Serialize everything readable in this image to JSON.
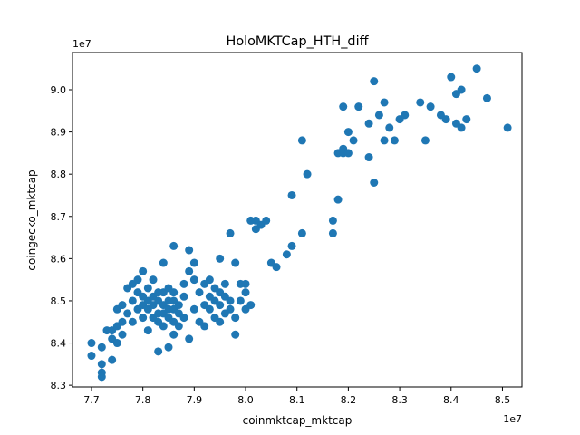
{
  "chart_data": {
    "type": "scatter",
    "title": "HoloMKTCap_HTH_diff",
    "xlabel": "coinmktcap_mktcap",
    "ylabel": "coingecko_mktcap",
    "x_offset_label": "1e7",
    "y_offset_label": "1e7",
    "xlim": [
      7.663,
      8.538
    ],
    "ylim": [
      8.296,
      9.088
    ],
    "x_ticks": [
      7.7,
      7.8,
      7.9,
      8.0,
      8.1,
      8.2,
      8.3,
      8.4,
      8.5
    ],
    "y_ticks": [
      8.3,
      8.4,
      8.5,
      8.6,
      8.7,
      8.8,
      8.9,
      9.0
    ],
    "grid": false,
    "point_color": "#1f77b4",
    "series": [
      {
        "points": [
          [
            7.7,
            8.4
          ],
          [
            7.7,
            8.37
          ],
          [
            7.72,
            8.39
          ],
          [
            7.72,
            8.35
          ],
          [
            7.72,
            8.33
          ],
          [
            7.72,
            8.32
          ],
          [
            7.73,
            8.43
          ],
          [
            7.74,
            8.41
          ],
          [
            7.74,
            8.36
          ],
          [
            7.74,
            8.43
          ],
          [
            7.75,
            8.4
          ],
          [
            7.75,
            8.48
          ],
          [
            7.75,
            8.44
          ],
          [
            7.76,
            8.42
          ],
          [
            7.76,
            8.45
          ],
          [
            7.76,
            8.49
          ],
          [
            7.77,
            8.53
          ],
          [
            7.77,
            8.47
          ],
          [
            7.78,
            8.45
          ],
          [
            7.78,
            8.5
          ],
          [
            7.78,
            8.54
          ],
          [
            7.79,
            8.48
          ],
          [
            7.79,
            8.52
          ],
          [
            7.79,
            8.55
          ],
          [
            7.8,
            8.46
          ],
          [
            7.8,
            8.49
          ],
          [
            7.8,
            8.51
          ],
          [
            7.8,
            8.57
          ],
          [
            7.81,
            8.43
          ],
          [
            7.81,
            8.48
          ],
          [
            7.81,
            8.5
          ],
          [
            7.81,
            8.53
          ],
          [
            7.82,
            8.46
          ],
          [
            7.82,
            8.49
          ],
          [
            7.82,
            8.51
          ],
          [
            7.82,
            8.55
          ],
          [
            7.83,
            8.45
          ],
          [
            7.83,
            8.47
          ],
          [
            7.83,
            8.5
          ],
          [
            7.83,
            8.52
          ],
          [
            7.83,
            8.38
          ],
          [
            7.84,
            8.44
          ],
          [
            7.84,
            8.47
          ],
          [
            7.84,
            8.49
          ],
          [
            7.84,
            8.52
          ],
          [
            7.84,
            8.59
          ],
          [
            7.85,
            8.39
          ],
          [
            7.85,
            8.46
          ],
          [
            7.85,
            8.48
          ],
          [
            7.85,
            8.5
          ],
          [
            7.85,
            8.53
          ],
          [
            7.86,
            8.42
          ],
          [
            7.86,
            8.45
          ],
          [
            7.86,
            8.48
          ],
          [
            7.86,
            8.5
          ],
          [
            7.86,
            8.52
          ],
          [
            7.86,
            8.63
          ],
          [
            7.87,
            8.44
          ],
          [
            7.87,
            8.47
          ],
          [
            7.87,
            8.49
          ],
          [
            7.88,
            8.46
          ],
          [
            7.88,
            8.51
          ],
          [
            7.88,
            8.54
          ],
          [
            7.89,
            8.41
          ],
          [
            7.89,
            8.57
          ],
          [
            7.89,
            8.62
          ],
          [
            7.9,
            8.48
          ],
          [
            7.9,
            8.55
          ],
          [
            7.9,
            8.59
          ],
          [
            7.91,
            8.52
          ],
          [
            7.91,
            8.45
          ],
          [
            7.92,
            8.44
          ],
          [
            7.92,
            8.49
          ],
          [
            7.92,
            8.54
          ],
          [
            7.93,
            8.48
          ],
          [
            7.93,
            8.51
          ],
          [
            7.93,
            8.55
          ],
          [
            7.94,
            8.46
          ],
          [
            7.94,
            8.5
          ],
          [
            7.94,
            8.53
          ],
          [
            7.95,
            8.45
          ],
          [
            7.95,
            8.49
          ],
          [
            7.95,
            8.52
          ],
          [
            7.95,
            8.6
          ],
          [
            7.96,
            8.47
          ],
          [
            7.96,
            8.51
          ],
          [
            7.96,
            8.54
          ],
          [
            7.97,
            8.48
          ],
          [
            7.97,
            8.5
          ],
          [
            7.97,
            8.66
          ],
          [
            7.98,
            8.46
          ],
          [
            7.98,
            8.42
          ],
          [
            7.98,
            8.59
          ],
          [
            7.99,
            8.5
          ],
          [
            7.99,
            8.54
          ],
          [
            8.0,
            8.48
          ],
          [
            8.0,
            8.52
          ],
          [
            8.0,
            8.54
          ],
          [
            8.01,
            8.49
          ],
          [
            8.01,
            8.69
          ],
          [
            8.02,
            8.67
          ],
          [
            8.02,
            8.69
          ],
          [
            8.03,
            8.68
          ],
          [
            8.04,
            8.69
          ],
          [
            8.05,
            8.59
          ],
          [
            8.06,
            8.58
          ],
          [
            8.08,
            8.61
          ],
          [
            8.09,
            8.63
          ],
          [
            8.09,
            8.75
          ],
          [
            8.11,
            8.66
          ],
          [
            8.11,
            8.88
          ],
          [
            8.12,
            8.8
          ],
          [
            8.17,
            8.66
          ],
          [
            8.17,
            8.69
          ],
          [
            8.18,
            8.74
          ],
          [
            8.18,
            8.85
          ],
          [
            8.19,
            8.85
          ],
          [
            8.19,
            8.96
          ],
          [
            8.19,
            8.86
          ],
          [
            8.2,
            8.9
          ],
          [
            8.2,
            8.85
          ],
          [
            8.21,
            8.88
          ],
          [
            8.22,
            8.96
          ],
          [
            8.24,
            8.84
          ],
          [
            8.24,
            8.92
          ],
          [
            8.25,
            9.02
          ],
          [
            8.25,
            8.78
          ],
          [
            8.26,
            8.94
          ],
          [
            8.27,
            8.97
          ],
          [
            8.27,
            8.88
          ],
          [
            8.28,
            8.91
          ],
          [
            8.29,
            8.88
          ],
          [
            8.3,
            8.93
          ],
          [
            8.31,
            8.94
          ],
          [
            8.34,
            8.97
          ],
          [
            8.35,
            8.88
          ],
          [
            8.36,
            8.96
          ],
          [
            8.38,
            8.94
          ],
          [
            8.39,
            8.93
          ],
          [
            8.4,
            9.03
          ],
          [
            8.41,
            8.99
          ],
          [
            8.41,
            8.92
          ],
          [
            8.42,
            8.91
          ],
          [
            8.42,
            9.0
          ],
          [
            8.43,
            8.93
          ],
          [
            8.45,
            9.05
          ],
          [
            8.47,
            8.98
          ],
          [
            8.51,
            8.91
          ]
        ]
      }
    ]
  }
}
